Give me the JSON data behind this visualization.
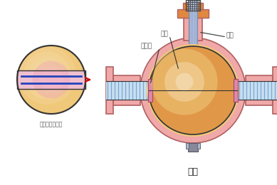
{
  "bg_color": "#ffffff",
  "body_color": "#f0a8a8",
  "body_edge": "#b06060",
  "ball_inner": "#cc7722",
  "ball_mid": "#e09848",
  "ball_outer": "#f0c87a",
  "pipe_bg": "#c8dff0",
  "pipe_stripe": "#6699cc",
  "stem_light": "#aabbdd",
  "stem_dark": "#7788aa",
  "orange_color": "#e08840",
  "pink_seal": "#d888aa",
  "gray_bot": "#999aaa",
  "title": "球阀",
  "label_ball": "球体",
  "label_seat": "密封座",
  "label_stem": "阀杆",
  "label_section": "球体俧视剑面图",
  "arrow_color": "#cc1111",
  "text_color": "#555555",
  "edge_color": "#333333"
}
